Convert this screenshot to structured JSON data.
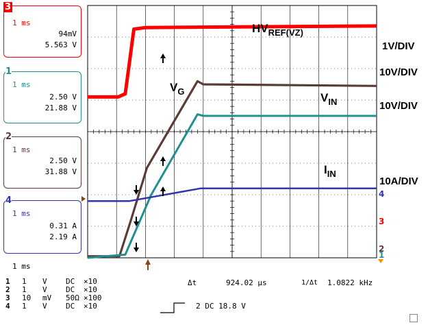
{
  "chart_data": {
    "type": "line",
    "title": "",
    "xlabel": "",
    "ylabel": "",
    "time_per_div": "1 ms",
    "x_divisions": 10,
    "y_divisions": 8,
    "grid": true,
    "series": [
      {
        "name": "HVREF(VZ)",
        "color": "#ff0000",
        "scale": "1V/DIV",
        "points": [
          [
            0,
            5.1
          ],
          [
            1.05,
            5.1
          ],
          [
            1.3,
            5.2
          ],
          [
            1.6,
            7.25
          ],
          [
            2.0,
            7.3
          ],
          [
            10,
            7.35
          ]
        ]
      },
      {
        "name": "VG",
        "color": "#5a3b35",
        "scale": "10V/DIV",
        "points": [
          [
            0,
            0.05
          ],
          [
            1.1,
            0.05
          ],
          [
            1.5,
            1.2
          ],
          [
            2.05,
            2.85
          ],
          [
            3.8,
            5.6
          ],
          [
            4.0,
            5.5
          ],
          [
            10,
            5.45
          ]
        ]
      },
      {
        "name": "VIN",
        "color": "#1f8f8f",
        "scale": "10V/DIV",
        "points": [
          [
            0,
            0.0
          ],
          [
            1.3,
            0.1
          ],
          [
            2.2,
            2.0
          ],
          [
            3.8,
            4.55
          ],
          [
            4.0,
            4.5
          ],
          [
            10,
            4.5
          ]
        ]
      },
      {
        "name": "IIN",
        "color": "#3333aa",
        "scale": "10A/DIV",
        "points": [
          [
            0,
            1.8
          ],
          [
            1.45,
            1.8
          ],
          [
            3.9,
            2.2
          ],
          [
            10,
            2.2
          ]
        ]
      }
    ]
  },
  "labels": {
    "hvref": "HVREF(VZ)",
    "hvref_main": "HV",
    "hvref_sub": "REF(VZ)",
    "vg_main": "V",
    "vg_sub": "G",
    "vin_main": "V",
    "vin_sub": "IN",
    "iin_main": "I",
    "iin_sub": "IN",
    "div1": "1V/DIV",
    "div2": "10V/DIV",
    "div3": "10V/DIV",
    "div4": "10A/DIV"
  },
  "channels": [
    {
      "num": "3",
      "color": "#ff0000",
      "time": "1 ms",
      "v1": "94mV",
      "v2": "5.563 V"
    },
    {
      "num": "1",
      "color": "#1f8f8f",
      "time": "1 ms",
      "v1": "2.50 V",
      "v2": "21.88 V"
    },
    {
      "num": "2",
      "color": "#5a3b35",
      "time": "1 ms",
      "v1": "2.50 V",
      "v2": "31.88 V"
    },
    {
      "num": "4",
      "color": "#3333aa",
      "time": "1 ms",
      "v1": "0.31 A",
      "v2": "2.19 A"
    }
  ],
  "bottom": {
    "timebase": "1 ms",
    "delta_t_label": "Δt",
    "delta_t_value": "924.02 µs",
    "freq_label": "1/Δt",
    "freq_value": "1.0822 kHz",
    "trigger": "2 DC 18.8 V",
    "rows": [
      {
        "ch": "1",
        "v": "1",
        "u": "V",
        "c": "DC",
        "p": "×10"
      },
      {
        "ch": "2",
        "v": "1",
        "u": "V",
        "c": "DC",
        "p": "×10"
      },
      {
        "ch": "3",
        "v": "10",
        "u": "mV",
        "c": "50Ω",
        "p": "×100"
      },
      {
        "ch": "4",
        "v": "1",
        "u": "V",
        "c": "DC",
        "p": "×10"
      }
    ]
  }
}
